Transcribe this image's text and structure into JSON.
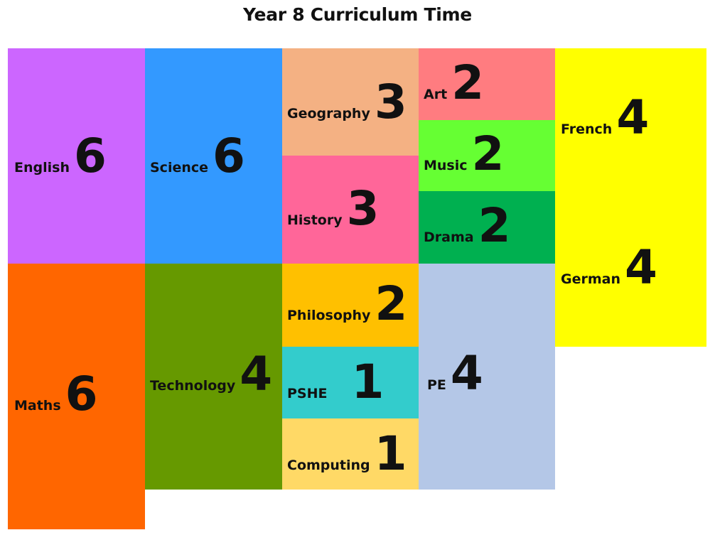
{
  "title": "Year 8 Curriculum Time",
  "subjects": [
    {
      "name": "English",
      "value": "6",
      "color": "#CC66FF"
    },
    {
      "name": "Science",
      "value": "6",
      "color": "#3399FF"
    },
    {
      "name": "Geography",
      "value": "3",
      "color": "#F4B183"
    },
    {
      "name": "Art",
      "value": "2",
      "color": "#FF7C80"
    },
    {
      "name": "French",
      "value": "4",
      "color": "#FFFF00"
    },
    {
      "name": "Music",
      "value": "2",
      "color": "#66FF33"
    },
    {
      "name": "History",
      "value": "3",
      "color": "#FF6699"
    },
    {
      "name": "Drama",
      "value": "2",
      "color": "#00B050"
    },
    {
      "name": "German",
      "value": "4",
      "color": "#FFFF00"
    },
    {
      "name": "Maths",
      "value": "6",
      "color": "#FF6600"
    },
    {
      "name": "Technology",
      "value": "4",
      "color": "#669900"
    },
    {
      "name": "Philosophy",
      "value": "2",
      "color": "#FFC000"
    },
    {
      "name": "PSHE",
      "value": "1",
      "color": "#33CCCC"
    },
    {
      "name": "Computing",
      "value": "1",
      "color": "#FFD966"
    },
    {
      "name": "PE",
      "value": "4",
      "color": "#B4C7E7"
    }
  ]
}
